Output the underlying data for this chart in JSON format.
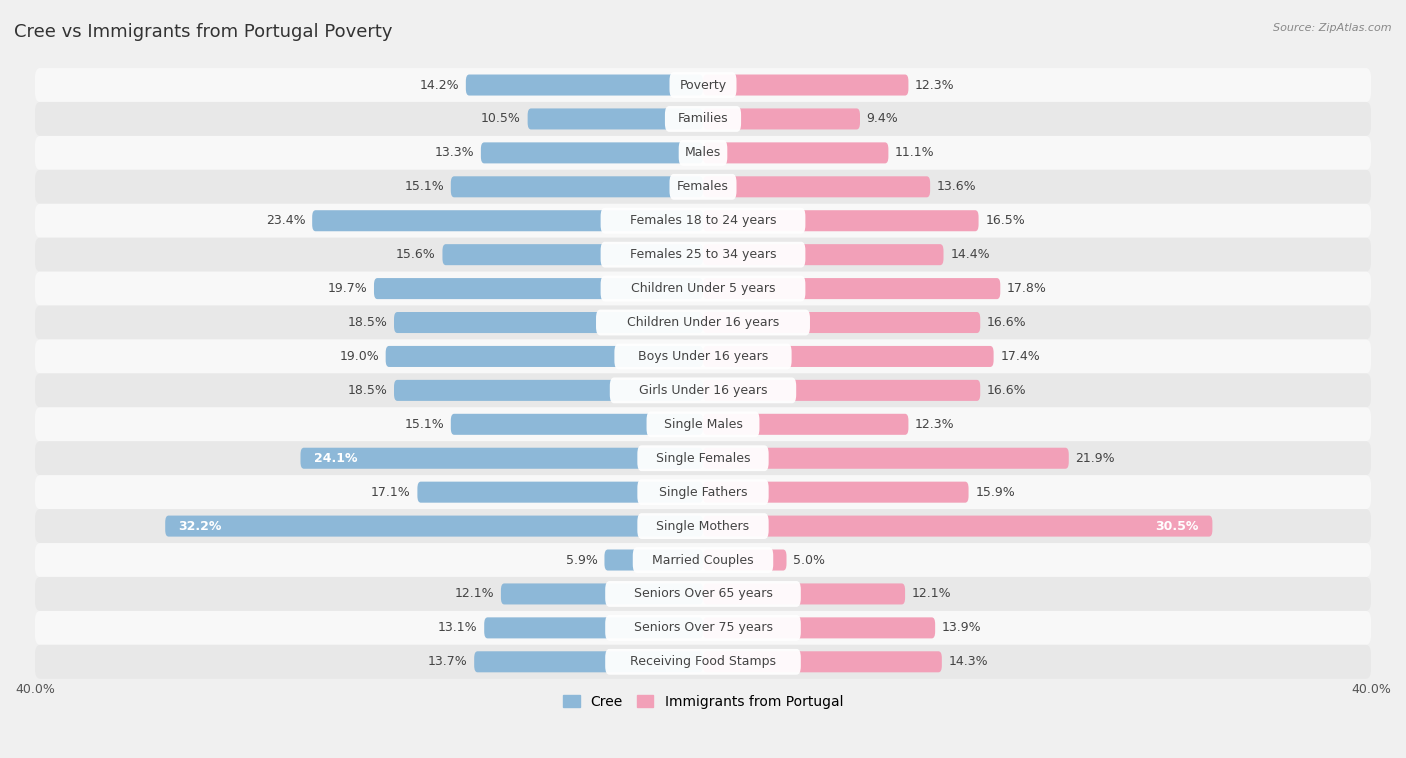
{
  "title": "Cree vs Immigrants from Portugal Poverty",
  "source": "Source: ZipAtlas.com",
  "categories": [
    "Poverty",
    "Families",
    "Males",
    "Females",
    "Females 18 to 24 years",
    "Females 25 to 34 years",
    "Children Under 5 years",
    "Children Under 16 years",
    "Boys Under 16 years",
    "Girls Under 16 years",
    "Single Males",
    "Single Females",
    "Single Fathers",
    "Single Mothers",
    "Married Couples",
    "Seniors Over 65 years",
    "Seniors Over 75 years",
    "Receiving Food Stamps"
  ],
  "cree_values": [
    14.2,
    10.5,
    13.3,
    15.1,
    23.4,
    15.6,
    19.7,
    18.5,
    19.0,
    18.5,
    15.1,
    24.1,
    17.1,
    32.2,
    5.9,
    12.1,
    13.1,
    13.7
  ],
  "portugal_values": [
    12.3,
    9.4,
    11.1,
    13.6,
    16.5,
    14.4,
    17.8,
    16.6,
    17.4,
    16.6,
    12.3,
    21.9,
    15.9,
    30.5,
    5.0,
    12.1,
    13.9,
    14.3
  ],
  "cree_color": "#8db8d8",
  "portugal_color": "#f2a0b8",
  "highlight_cree": [
    11,
    13
  ],
  "highlight_portugal": [
    13
  ],
  "xlim": 40.0,
  "bar_height": 0.62,
  "background_color": "#f0f0f0",
  "row_bg_odd": "#f8f8f8",
  "row_bg_even": "#e8e8e8",
  "title_fontsize": 13,
  "label_fontsize": 9,
  "category_fontsize": 9,
  "legend_fontsize": 10,
  "axis_label_color": "#555555",
  "value_label_color": "#444444",
  "category_text_color": "#444444"
}
